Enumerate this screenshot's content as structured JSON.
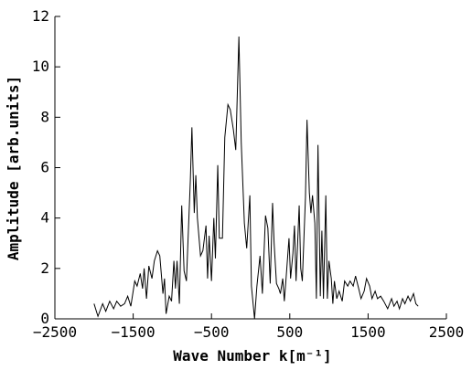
{
  "chart_data": {
    "type": "line",
    "x_label": "Wave Number k[m⁻¹]",
    "y_label": "Amplitude [arb.units]",
    "xlim": [
      -2500,
      2500
    ],
    "xticks": [
      {
        "value": -2500,
        "label": "−2500"
      },
      {
        "value": -1500,
        "label": "−1500"
      },
      {
        "value": -500,
        "label": "−500"
      },
      500,
      1500,
      2500
    ],
    "ylim": [
      0,
      12
    ],
    "yticks": [
      0,
      2,
      4,
      6,
      8,
      10,
      12
    ],
    "grid": false,
    "series": [
      {
        "color": "#000000",
        "x": [
          -2000,
          -1950,
          -1890,
          -1850,
          -1800,
          -1750,
          -1710,
          -1660,
          -1610,
          -1570,
          -1530,
          -1480,
          -1450,
          -1410,
          -1380,
          -1360,
          -1330,
          -1300,
          -1260,
          -1230,
          -1190,
          -1160,
          -1120,
          -1100,
          -1080,
          -1040,
          -1010,
          -980,
          -960,
          -940,
          -910,
          -880,
          -850,
          -820,
          -800,
          -770,
          -750,
          -720,
          -700,
          -680,
          -640,
          -610,
          -570,
          -550,
          -530,
          -500,
          -470,
          -450,
          -420,
          -400,
          -360,
          -330,
          -290,
          -260,
          -220,
          -190,
          -150,
          -120,
          -80,
          -50,
          -10,
          10,
          50,
          80,
          120,
          150,
          190,
          220,
          250,
          280,
          300,
          330,
          360,
          380,
          410,
          430,
          450,
          490,
          510,
          540,
          560,
          580,
          620,
          640,
          660,
          700,
          720,
          750,
          770,
          790,
          820,
          840,
          860,
          890,
          910,
          930,
          960,
          980,
          1000,
          1030,
          1050,
          1070,
          1100,
          1130,
          1170,
          1200,
          1240,
          1270,
          1310,
          1340,
          1380,
          1410,
          1450,
          1480,
          1520,
          1550,
          1590,
          1620,
          1660,
          1700,
          1750,
          1800,
          1830,
          1870,
          1900,
          1940,
          1970,
          2010,
          2040,
          2080,
          2110,
          2140
        ],
        "values": [
          0.6,
          0.1,
          0.6,
          0.3,
          0.7,
          0.4,
          0.7,
          0.5,
          0.6,
          0.9,
          0.5,
          1.5,
          1.3,
          1.8,
          1.2,
          2.0,
          0.8,
          2.1,
          1.6,
          2.3,
          2.7,
          2.5,
          1.0,
          1.6,
          0.2,
          0.9,
          0.7,
          2.3,
          1.2,
          2.3,
          0.6,
          4.5,
          1.9,
          1.5,
          3.1,
          5.5,
          7.6,
          4.2,
          5.7,
          4.0,
          2.5,
          2.7,
          3.7,
          1.6,
          3.3,
          1.5,
          4.0,
          2.4,
          6.1,
          3.2,
          3.2,
          7.2,
          8.5,
          8.3,
          7.5,
          6.7,
          11.2,
          7.0,
          3.8,
          2.8,
          4.9,
          1.3,
          0.0,
          1.3,
          2.5,
          1.0,
          4.1,
          3.6,
          1.4,
          4.6,
          3.0,
          1.4,
          1.2,
          1.0,
          1.6,
          0.7,
          1.5,
          3.2,
          1.6,
          2.6,
          3.7,
          1.5,
          4.5,
          2.0,
          1.5,
          4.8,
          7.9,
          5.0,
          4.2,
          4.9,
          3.8,
          0.8,
          6.9,
          0.9,
          3.5,
          0.8,
          4.9,
          0.8,
          2.3,
          1.6,
          0.6,
          1.5,
          0.8,
          1.1,
          0.7,
          1.5,
          1.3,
          1.5,
          1.3,
          1.7,
          1.2,
          0.8,
          1.1,
          1.6,
          1.3,
          0.8,
          1.1,
          0.8,
          0.9,
          0.7,
          0.4,
          0.8,
          0.5,
          0.7,
          0.4,
          0.8,
          0.6,
          0.9,
          0.7,
          1.0,
          0.6,
          0.5
        ]
      }
    ]
  }
}
